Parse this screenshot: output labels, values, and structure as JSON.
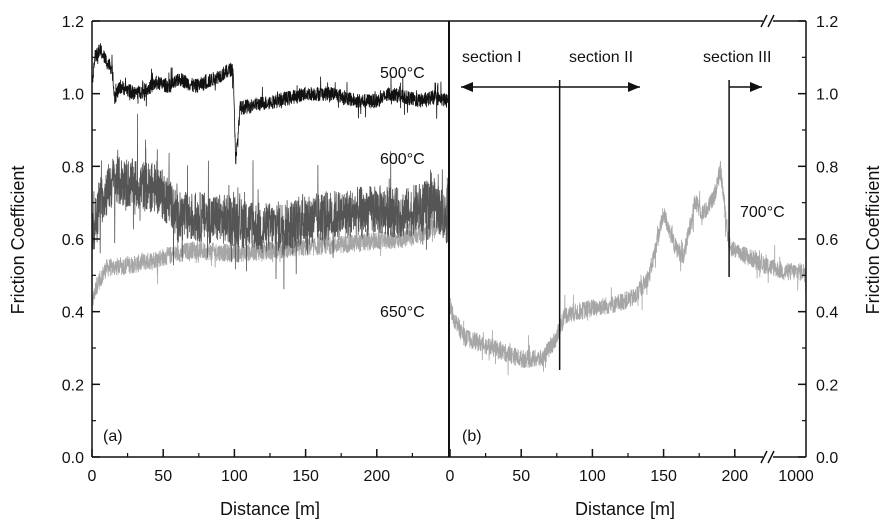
{
  "chart_data": {
    "type": "line",
    "ylabel": "Friction Coefficient",
    "ylabel_right": "Friction Coefficient",
    "ylim": [
      0.0,
      1.2
    ],
    "yticks": [
      "0.0",
      "0.2",
      "0.4",
      "0.6",
      "0.8",
      "1.0",
      "1.2"
    ],
    "grid": false,
    "panels": [
      {
        "panel_label": "(a)",
        "xlabel": "Distance [m]",
        "xlim": [
          0,
          250
        ],
        "xticks": [
          "0",
          "50",
          "100",
          "150",
          "200"
        ],
        "series": [
          {
            "name": "500°C",
            "color": "#111111",
            "noise": 0.02,
            "points": [
              [
                0,
                1.03
              ],
              [
                2,
                1.1
              ],
              [
                6,
                1.12
              ],
              [
                10,
                1.09
              ],
              [
                14,
                1.07
              ],
              [
                16,
                0.99
              ],
              [
                20,
                1.02
              ],
              [
                30,
                1.0
              ],
              [
                38,
                1.01
              ],
              [
                45,
                1.03
              ],
              [
                55,
                1.02
              ],
              [
                62,
                1.04
              ],
              [
                72,
                1.02
              ],
              [
                80,
                1.03
              ],
              [
                90,
                1.05
              ],
              [
                99,
                1.07
              ],
              [
                101,
                0.81
              ],
              [
                104,
                0.96
              ],
              [
                115,
                0.97
              ],
              [
                130,
                0.98
              ],
              [
                150,
                1.0
              ],
              [
                170,
                1.0
              ],
              [
                185,
                0.98
              ],
              [
                200,
                0.98
              ],
              [
                210,
                1.0
              ],
              [
                220,
                0.99
              ],
              [
                230,
                0.98
              ],
              [
                240,
                0.99
              ],
              [
                250,
                0.98
              ]
            ]
          },
          {
            "name": "600°C",
            "color": "#555555",
            "noise": 0.07,
            "points": [
              [
                0,
                0.6
              ],
              [
                5,
                0.7
              ],
              [
                15,
                0.76
              ],
              [
                30,
                0.75
              ],
              [
                45,
                0.74
              ],
              [
                55,
                0.7
              ],
              [
                60,
                0.66
              ],
              [
                80,
                0.66
              ],
              [
                100,
                0.65
              ],
              [
                120,
                0.63
              ],
              [
                140,
                0.64
              ],
              [
                160,
                0.66
              ],
              [
                180,
                0.67
              ],
              [
                200,
                0.68
              ],
              [
                220,
                0.67
              ],
              [
                240,
                0.7
              ],
              [
                250,
                0.65
              ]
            ]
          },
          {
            "name": "650°C",
            "color": "#a6a6a6",
            "noise": 0.025,
            "points": [
              [
                0,
                0.42
              ],
              [
                3,
                0.47
              ],
              [
                10,
                0.52
              ],
              [
                30,
                0.53
              ],
              [
                50,
                0.55
              ],
              [
                70,
                0.57
              ],
              [
                100,
                0.56
              ],
              [
                130,
                0.57
              ],
              [
                160,
                0.58
              ],
              [
                190,
                0.59
              ],
              [
                220,
                0.6
              ],
              [
                240,
                0.63
              ],
              [
                250,
                0.68
              ]
            ]
          }
        ],
        "annotations": [
          "500°C",
          "600°C",
          "650°C"
        ]
      },
      {
        "panel_label": "(b)",
        "xlabel": "Distance [m]",
        "xlim": [
          0,
          250
        ],
        "x_break_label": "1000",
        "xticks": [
          "0",
          "50",
          "100",
          "150",
          "200"
        ],
        "series": [
          {
            "name": "700°C",
            "color": "#a6a6a6",
            "noise": 0.025,
            "points": [
              [
                0,
                0.42
              ],
              [
                3,
                0.38
              ],
              [
                10,
                0.33
              ],
              [
                30,
                0.3
              ],
              [
                50,
                0.27
              ],
              [
                65,
                0.27
              ],
              [
                75,
                0.33
              ],
              [
                80,
                0.39
              ],
              [
                100,
                0.41
              ],
              [
                115,
                0.42
              ],
              [
                130,
                0.44
              ],
              [
                140,
                0.5
              ],
              [
                150,
                0.67
              ],
              [
                158,
                0.58
              ],
              [
                164,
                0.55
              ],
              [
                172,
                0.7
              ],
              [
                178,
                0.67
              ],
              [
                185,
                0.71
              ],
              [
                190,
                0.79
              ],
              [
                196,
                0.58
              ],
              [
                205,
                0.56
              ],
              [
                220,
                0.53
              ],
              [
                235,
                0.51
              ],
              [
                250,
                0.51
              ]
            ]
          }
        ],
        "annotations": [
          "section I",
          "section II",
          "section III",
          "700°C"
        ]
      }
    ]
  }
}
